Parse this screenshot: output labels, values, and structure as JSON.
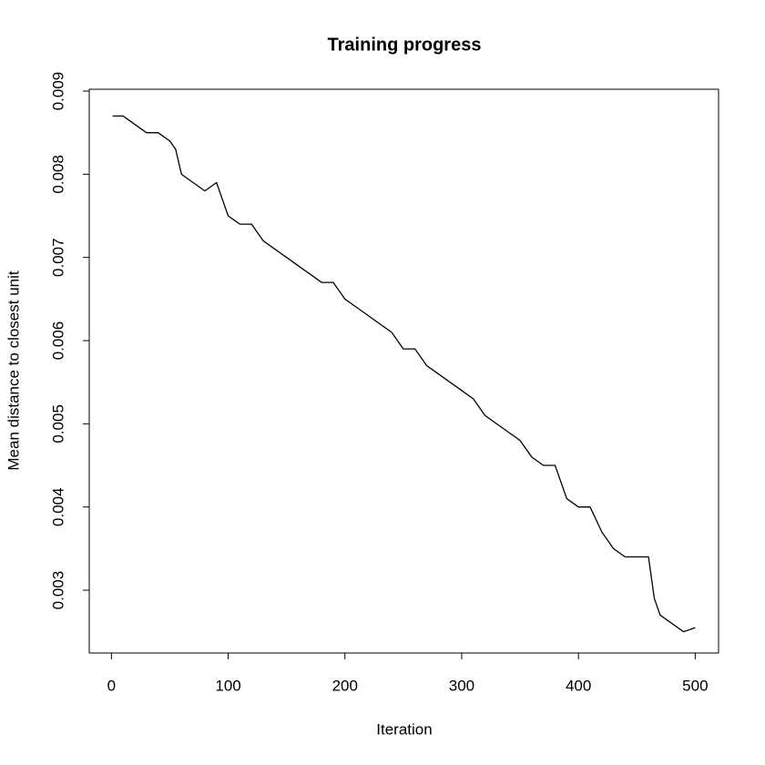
{
  "chart_data": {
    "type": "line",
    "title": "Training progress",
    "x_label": "Iteration",
    "y_label": "Mean distance to closest unit",
    "x": [
      1,
      10,
      20,
      30,
      40,
      50,
      55,
      60,
      70,
      80,
      90,
      100,
      110,
      120,
      130,
      140,
      150,
      160,
      170,
      180,
      190,
      200,
      210,
      220,
      230,
      240,
      250,
      260,
      270,
      280,
      290,
      300,
      310,
      320,
      330,
      340,
      350,
      360,
      370,
      380,
      390,
      400,
      410,
      420,
      430,
      440,
      450,
      460,
      465,
      470,
      480,
      490,
      500
    ],
    "series": [
      {
        "name": "Mean distance",
        "color": "#000000",
        "values": [
          0.0087,
          0.0087,
          0.0086,
          0.0085,
          0.0085,
          0.0084,
          0.0083,
          0.008,
          0.0079,
          0.0078,
          0.0079,
          0.0075,
          0.0074,
          0.0074,
          0.0072,
          0.0071,
          0.007,
          0.0069,
          0.0068,
          0.0067,
          0.0067,
          0.0065,
          0.0064,
          0.0063,
          0.0062,
          0.0061,
          0.0059,
          0.0059,
          0.0057,
          0.0056,
          0.0055,
          0.0054,
          0.0053,
          0.0051,
          0.005,
          0.0049,
          0.0048,
          0.0046,
          0.0045,
          0.0045,
          0.0041,
          0.004,
          0.004,
          0.0037,
          0.0035,
          0.0034,
          0.0034,
          0.0034,
          0.0029,
          0.0027,
          0.0026,
          0.0025,
          0.00255
        ]
      }
    ],
    "xlim": [
      -19,
      520
    ],
    "ylim": [
      0.002245,
      0.009022
    ],
    "xticks": [
      0,
      100,
      200,
      300,
      400,
      500
    ],
    "yticks": [
      0.003,
      0.004,
      0.005,
      0.006,
      0.007,
      0.008,
      0.009
    ],
    "grid": false
  }
}
